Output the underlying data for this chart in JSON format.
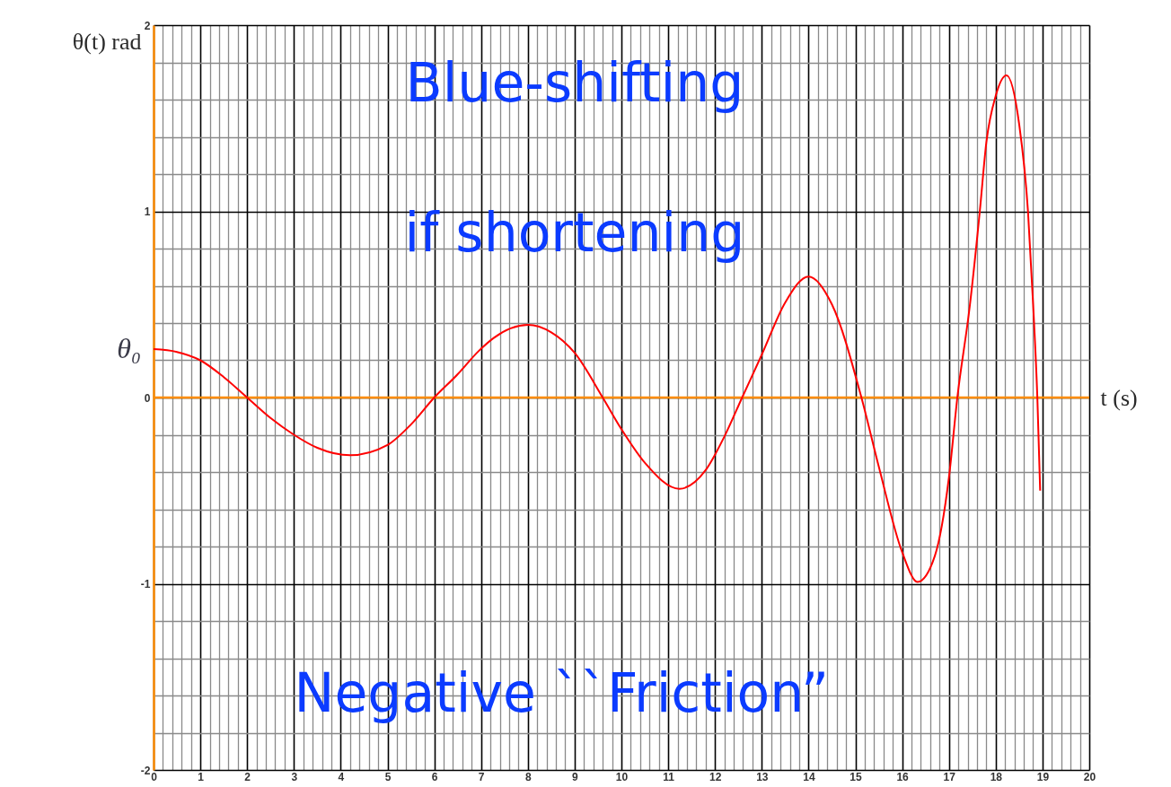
{
  "chart_data": {
    "type": "line",
    "xlabel": "t (s)",
    "ylabel": "θ(t) rad",
    "x": [
      0,
      0.5,
      1.0,
      1.5,
      2.0,
      2.5,
      3.0,
      3.5,
      4.2,
      5.0,
      5.5,
      6.0,
      6.5,
      6.95,
      7.27,
      8.0,
      8.5,
      9.0,
      9.6,
      10.0,
      10.5,
      11.24,
      11.8,
      12.2,
      12.58,
      13.0,
      13.5,
      14.0,
      14.5,
      15.13,
      15.5,
      16.0,
      16.33,
      16.7,
      17.0,
      17.18,
      17.45,
      17.66,
      17.8,
      18.0,
      18.23,
      18.5,
      18.69,
      18.8,
      18.89,
      18.95
    ],
    "series": [
      {
        "color": "#ff0000",
        "values": [
          0.26,
          0.245,
          0.2,
          0.11,
          0,
          -0.11,
          -0.2,
          -0.27,
          -0.31,
          -0.255,
          -0.145,
          0,
          0.125,
          0.25,
          0.32,
          0.39,
          0.35,
          0.24,
          0,
          -0.17,
          -0.35,
          -0.49,
          -0.39,
          -0.21,
          0,
          0.23,
          0.51,
          0.65,
          0.5,
          0,
          -0.37,
          -0.83,
          -0.99,
          -0.85,
          -0.43,
          0,
          0.5,
          1.0,
          1.37,
          1.62,
          1.73,
          1.47,
          1.0,
          0.5,
          0,
          -0.5
        ]
      }
    ],
    "xlim": [
      0,
      20
    ],
    "ylim": [
      -2,
      2
    ],
    "xticks": [
      0,
      {
        "value": 0.2,
        "label": null
      },
      {
        "value": 0.4,
        "label": null
      },
      {
        "value": 0.6,
        "label": null
      },
      {
        "value": 0.8,
        "label": null
      },
      1,
      {
        "value": 1.2,
        "label": null
      },
      {
        "value": 1.4,
        "label": null
      },
      {
        "value": 1.6,
        "label": null
      },
      {
        "value": 1.8,
        "label": null
      },
      2,
      {
        "value": 2.2,
        "label": null
      },
      {
        "value": 2.4,
        "label": null
      },
      {
        "value": 2.6,
        "label": null
      },
      {
        "value": 2.8,
        "label": null
      },
      3,
      {
        "value": 3.2,
        "label": null
      },
      {
        "value": 3.4,
        "label": null
      },
      {
        "value": 3.6,
        "label": null
      },
      {
        "value": 3.8,
        "label": null
      },
      4,
      {
        "value": 4.2,
        "label": null
      },
      {
        "value": 4.4,
        "label": null
      },
      {
        "value": 4.6,
        "label": null
      },
      {
        "value": 4.8,
        "label": null
      },
      5,
      {
        "value": 5.2,
        "label": null
      },
      {
        "value": 5.4,
        "label": null
      },
      {
        "value": 5.6,
        "label": null
      },
      {
        "value": 5.8,
        "label": null
      },
      6,
      {
        "value": 6.2,
        "label": null
      },
      {
        "value": 6.4,
        "label": null
      },
      {
        "value": 6.6,
        "label": null
      },
      {
        "value": 6.8,
        "label": null
      },
      7,
      {
        "value": 7.2,
        "label": null
      },
      {
        "value": 7.4,
        "label": null
      },
      {
        "value": 7.6,
        "label": null
      },
      {
        "value": 7.8,
        "label": null
      },
      8,
      {
        "value": 8.2,
        "label": null
      },
      {
        "value": 8.4,
        "label": null
      },
      {
        "value": 8.6,
        "label": null
      },
      {
        "value": 8.8,
        "label": null
      },
      9,
      {
        "value": 9.2,
        "label": null
      },
      {
        "value": 9.4,
        "label": null
      },
      {
        "value": 9.6,
        "label": null
      },
      {
        "value": 9.8,
        "label": null
      },
      10,
      {
        "value": 10.2,
        "label": null
      },
      {
        "value": 10.4,
        "label": null
      },
      {
        "value": 10.6,
        "label": null
      },
      {
        "value": 10.8,
        "label": null
      },
      11,
      {
        "value": 11.2,
        "label": null
      },
      {
        "value": 11.4,
        "label": null
      },
      {
        "value": 11.6,
        "label": null
      },
      {
        "value": 11.8,
        "label": null
      },
      12,
      {
        "value": 12.2,
        "label": null
      },
      {
        "value": 12.4,
        "label": null
      },
      {
        "value": 12.6,
        "label": null
      },
      {
        "value": 12.8,
        "label": null
      },
      13,
      {
        "value": 13.2,
        "label": null
      },
      {
        "value": 13.4,
        "label": null
      },
      {
        "value": 13.6,
        "label": null
      },
      {
        "value": 13.8,
        "label": null
      },
      14,
      {
        "value": 14.2,
        "label": null
      },
      {
        "value": 14.4,
        "label": null
      },
      {
        "value": 14.6,
        "label": null
      },
      {
        "value": 14.8,
        "label": null
      },
      15,
      {
        "value": 15.2,
        "label": null
      },
      {
        "value": 15.4,
        "label": null
      },
      {
        "value": 15.6,
        "label": null
      },
      {
        "value": 15.8,
        "label": null
      },
      16,
      {
        "value": 16.2,
        "label": null
      },
      {
        "value": 16.4,
        "label": null
      },
      {
        "value": 16.6,
        "label": null
      },
      {
        "value": 16.8,
        "label": null
      },
      17,
      {
        "value": 17.2,
        "label": null
      },
      {
        "value": 17.4,
        "label": null
      },
      {
        "value": 17.6,
        "label": null
      },
      {
        "value": 17.8,
        "label": null
      },
      18,
      {
        "value": 18.2,
        "label": null
      },
      {
        "value": 18.4,
        "label": null
      },
      {
        "value": 18.6,
        "label": null
      },
      {
        "value": 18.8,
        "label": null
      },
      19,
      {
        "value": 19.2,
        "label": null
      },
      {
        "value": 19.4,
        "label": null
      },
      {
        "value": 19.6,
        "label": null
      },
      {
        "value": 19.8,
        "label": null
      },
      20
    ],
    "yticks": [
      -2,
      {
        "value": -1.8,
        "label": null
      },
      {
        "value": -1.6,
        "label": null
      },
      {
        "value": -1.4,
        "label": null
      },
      {
        "value": -1.2,
        "label": null
      },
      -1,
      {
        "value": -0.8,
        "label": null
      },
      {
        "value": -0.6,
        "label": null
      },
      {
        "value": -0.4,
        "label": null
      },
      {
        "value": -0.2,
        "label": null
      },
      0,
      {
        "value": 0.2,
        "label": null
      },
      {
        "value": 0.4,
        "label": null
      },
      {
        "value": 0.6,
        "label": null
      },
      {
        "value": 0.8,
        "label": null
      },
      1,
      {
        "value": 1.2,
        "label": null
      },
      {
        "value": 1.4,
        "label": null
      },
      {
        "value": 1.6,
        "label": null
      },
      {
        "value": 1.8,
        "label": null
      },
      2
    ],
    "grid": true,
    "line_style": "solid",
    "ref_lines": [
      {
        "axis": "y",
        "value": 0,
        "color": "#ff8c00"
      }
    ],
    "annotations": [
      {
        "text": "θ₀",
        "x": 0,
        "y": 0.26
      },
      "Blue-shifting",
      "if shortening",
      "Negative ``Friction”"
    ]
  }
}
